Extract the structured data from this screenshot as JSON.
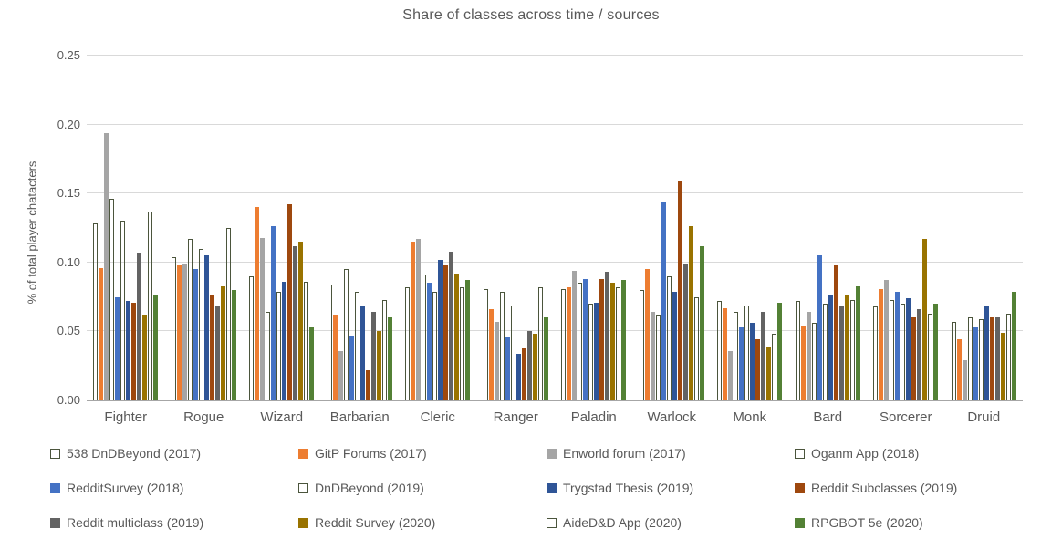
{
  "title": "Share of classes across time / sources",
  "chart_data": {
    "type": "bar",
    "title": "Share of classes across time / sources",
    "xlabel": "",
    "ylabel": "% of total player chatacters",
    "ylim": [
      0,
      0.25
    ],
    "yticks": [
      0,
      0.05,
      0.1,
      0.15,
      0.2,
      0.25
    ],
    "ytick_labels": [
      "0.00",
      "0.05",
      "0.10",
      "0.15",
      "0.20",
      "0.25"
    ],
    "grid": true,
    "legend_position": "bottom",
    "categories": [
      "Fighter",
      "Rogue",
      "Wizard",
      "Barbarian",
      "Cleric",
      "Ranger",
      "Paladin",
      "Warlock",
      "Monk",
      "Bard",
      "Sorcerer",
      "Druid"
    ],
    "series": [
      {
        "name": "538 DnDBeyond (2017)",
        "style": "outline",
        "color": "#4b553c",
        "values": [
          0.128,
          0.104,
          0.09,
          0.084,
          0.082,
          0.081,
          0.081,
          0.08,
          0.072,
          0.072,
          0.068,
          0.057
        ]
      },
      {
        "name": "GitP Forums (2017)",
        "style": "solid",
        "color": "#ed7d31",
        "values": [
          0.096,
          0.098,
          0.14,
          0.062,
          0.115,
          0.066,
          0.082,
          0.095,
          0.067,
          0.054,
          0.081,
          0.044
        ]
      },
      {
        "name": "Enworld forum (2017)",
        "style": "solid",
        "color": "#a5a5a5",
        "values": [
          0.194,
          0.099,
          0.118,
          0.036,
          0.117,
          0.057,
          0.094,
          0.064,
          0.036,
          0.064,
          0.087,
          0.029
        ]
      },
      {
        "name": "Oganm App (2018)",
        "style": "outline",
        "color": "#4b553c",
        "values": [
          0.146,
          0.117,
          0.064,
          0.095,
          0.091,
          0.079,
          0.085,
          0.062,
          0.064,
          0.056,
          0.073,
          0.06
        ]
      },
      {
        "name": "RedditSurvey (2018)",
        "style": "solid",
        "color": "#4472c4",
        "values": [
          0.075,
          0.095,
          0.126,
          0.047,
          0.085,
          0.046,
          0.088,
          0.144,
          0.053,
          0.105,
          0.079,
          0.053
        ]
      },
      {
        "name": "DnDBeyond (2019)",
        "style": "outline",
        "color": "#4b553c",
        "values": [
          0.13,
          0.11,
          0.079,
          0.079,
          0.079,
          0.069,
          0.07,
          0.09,
          0.069,
          0.07,
          0.07,
          0.059
        ]
      },
      {
        "name": "Trygstad Thesis (2019)",
        "style": "solid",
        "color": "#2f5597",
        "values": [
          0.072,
          0.105,
          0.086,
          0.068,
          0.102,
          0.034,
          0.071,
          0.079,
          0.056,
          0.077,
          0.074,
          0.068
        ]
      },
      {
        "name": "Reddit Subclasses (2019)",
        "style": "solid",
        "color": "#9e480e",
        "values": [
          0.071,
          0.077,
          0.142,
          0.022,
          0.098,
          0.038,
          0.088,
          0.159,
          0.044,
          0.098,
          0.06,
          0.06
        ]
      },
      {
        "name": "Reddit multiclass (2019)",
        "style": "solid",
        "color": "#636363",
        "values": [
          0.107,
          0.069,
          0.112,
          0.064,
          0.108,
          0.05,
          0.093,
          0.099,
          0.064,
          0.068,
          0.066,
          0.06
        ]
      },
      {
        "name": "Reddit Survey (2020)",
        "style": "solid",
        "color": "#997300",
        "values": [
          0.062,
          0.083,
          0.115,
          0.05,
          0.092,
          0.048,
          0.085,
          0.126,
          0.039,
          0.077,
          0.117,
          0.049
        ]
      },
      {
        "name": "AideD&D App (2020)",
        "style": "outline",
        "color": "#4b553c",
        "values": [
          0.137,
          0.125,
          0.086,
          0.073,
          0.082,
          0.082,
          0.082,
          0.075,
          0.048,
          0.073,
          0.063,
          0.063
        ]
      },
      {
        "name": "RPGBOT 5e (2020)",
        "style": "solid",
        "color": "#538135",
        "values": [
          0.077,
          0.08,
          0.053,
          0.06,
          0.087,
          0.06,
          0.087,
          0.112,
          0.071,
          0.083,
          0.07,
          0.079
        ]
      }
    ]
  },
  "colors": {
    "gridline": "#d9d9d9",
    "axis_line": "#a6a6a6",
    "text": "#595959",
    "background": "#ffffff"
  }
}
